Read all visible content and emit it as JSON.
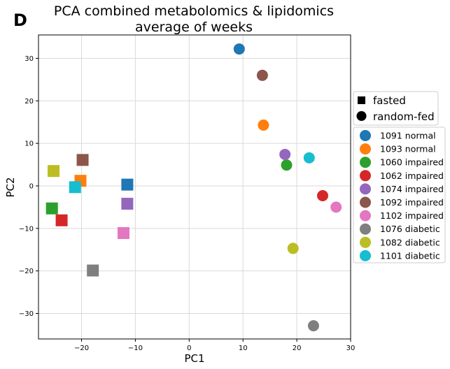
{
  "panel_letter": "D",
  "chart_data": {
    "type": "scatter",
    "title_lines": [
      "PCA combined metabolomics & lipidomics",
      "average of weeks"
    ],
    "xlabel": "PC1",
    "ylabel": "PC2",
    "xlim": [
      -28,
      30
    ],
    "ylim": [
      -36,
      35.5
    ],
    "xticks": [
      -20,
      -10,
      0,
      10,
      20,
      30
    ],
    "yticks": [
      -30,
      -20,
      -10,
      0,
      10,
      20,
      30
    ],
    "tick_labels_x": [
      "−20",
      "−10",
      "0",
      "10",
      "20",
      "30"
    ],
    "tick_labels_y": [
      "−30",
      "−20",
      "−10",
      "0",
      "10",
      "20",
      "30"
    ],
    "grid": true,
    "marker_legend": [
      {
        "label": "fasted",
        "marker": "square"
      },
      {
        "label": "random-fed",
        "marker": "circle"
      }
    ],
    "series": [
      {
        "name": "1091 normal",
        "color": "#1f77b4",
        "fasted": [
          -11.5,
          0.3
        ],
        "random_fed": [
          9.3,
          32.2
        ]
      },
      {
        "name": "1093 normal",
        "color": "#ff7f0e",
        "fasted": [
          -20.2,
          1.2
        ],
        "random_fed": [
          13.8,
          14.3
        ]
      },
      {
        "name": "1060 impaired",
        "color": "#2ca02c",
        "fasted": [
          -25.5,
          -5.3
        ],
        "random_fed": [
          18.1,
          4.9
        ]
      },
      {
        "name": "1062 impaired",
        "color": "#d62728",
        "fasted": [
          -23.7,
          -8.1
        ],
        "random_fed": [
          24.8,
          -2.3
        ]
      },
      {
        "name": "1074 impaired",
        "color": "#9467bd",
        "fasted": [
          -11.5,
          -4.2
        ],
        "random_fed": [
          17.8,
          7.4
        ]
      },
      {
        "name": "1092 impaired",
        "color": "#8c564b",
        "fasted": [
          -19.8,
          6.1
        ],
        "random_fed": [
          13.6,
          26.0
        ]
      },
      {
        "name": "1102 impaired",
        "color": "#e377c2",
        "fasted": [
          -12.2,
          -11.1
        ],
        "random_fed": [
          27.3,
          -5.0
        ]
      },
      {
        "name": "1076 diabetic",
        "color": "#7f7f7f",
        "fasted": [
          -17.9,
          -19.9
        ],
        "random_fed": [
          23.1,
          -32.9
        ]
      },
      {
        "name": "1082 diabetic",
        "color": "#bcbd22",
        "fasted": [
          -25.2,
          3.5
        ],
        "random_fed": [
          19.3,
          -14.7
        ]
      },
      {
        "name": "1101 diabetic",
        "color": "#17becf",
        "fasted": [
          -21.2,
          -0.3
        ],
        "random_fed": [
          22.3,
          6.6
        ]
      }
    ]
  }
}
